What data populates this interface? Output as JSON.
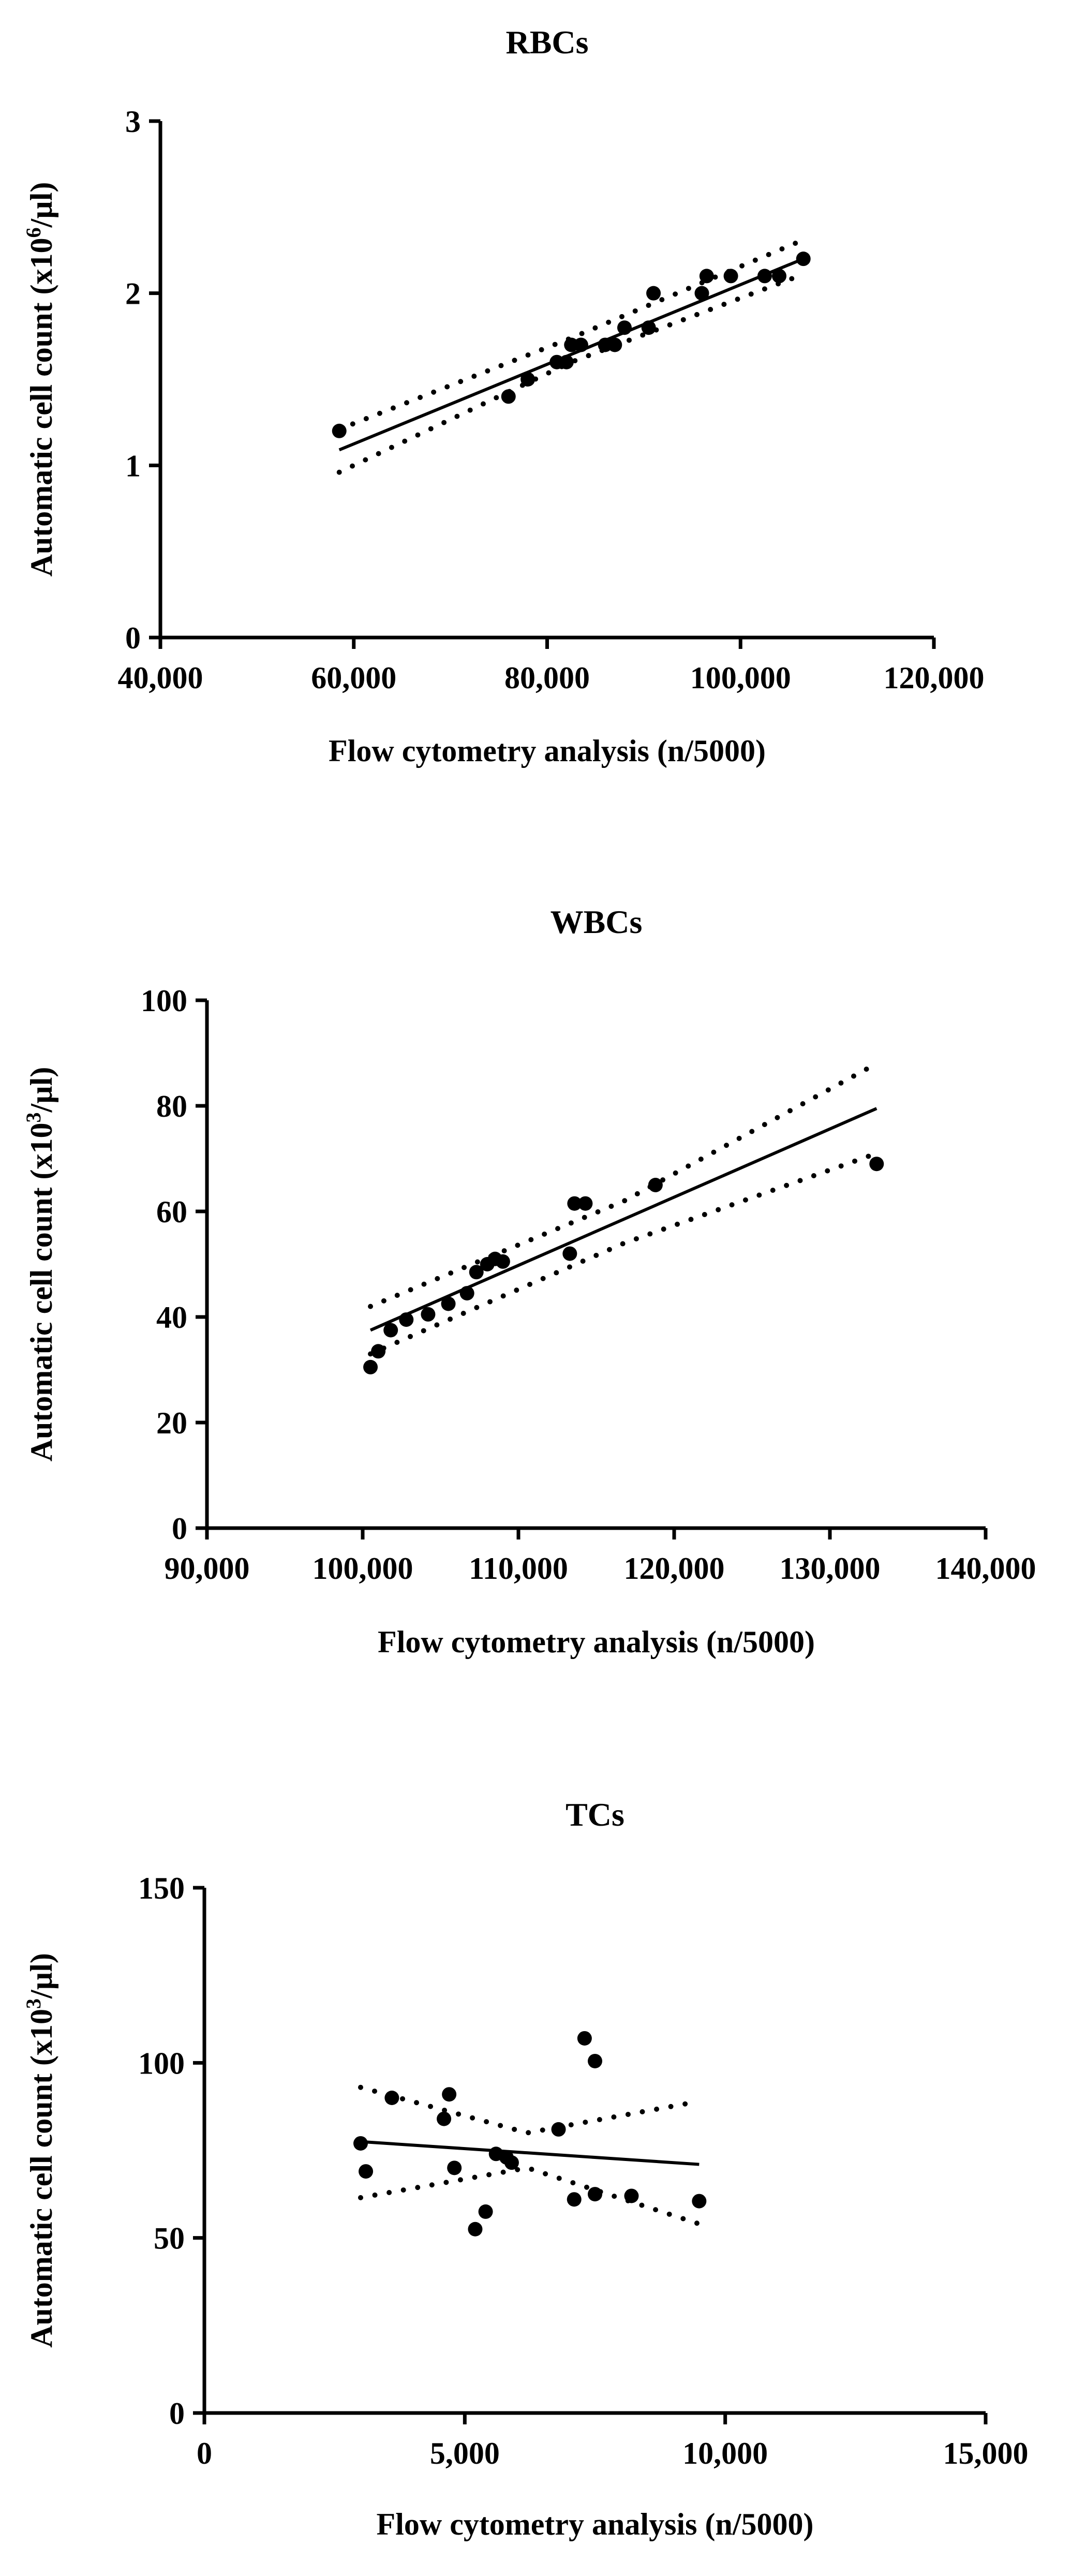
{
  "chart_data": [
    {
      "type": "scatter",
      "title": "RBCs",
      "xlabel": "Flow cytometry analysis (n/5000)",
      "ylabel_main": "Automatic cell count (x10",
      "ylabel_sup": "6",
      "ylabel_tail": "/µl)",
      "xlim": [
        40000,
        120000
      ],
      "ylim": [
        0,
        3
      ],
      "xticks": [
        40000,
        60000,
        80000,
        100000,
        120000
      ],
      "xtick_labels": [
        "40,000",
        "60,000",
        "80,000",
        "100,000",
        "120,000"
      ],
      "yticks": [
        0,
        1,
        2,
        3
      ],
      "ytick_labels": [
        "0",
        "1",
        "2",
        "3"
      ],
      "points": [
        [
          58500,
          1.2
        ],
        [
          76000,
          1.4
        ],
        [
          78000,
          1.5
        ],
        [
          81000,
          1.6
        ],
        [
          82000,
          1.6
        ],
        [
          82500,
          1.7
        ],
        [
          83500,
          1.7
        ],
        [
          86000,
          1.7
        ],
        [
          87000,
          1.7
        ],
        [
          88000,
          1.8
        ],
        [
          90500,
          1.8
        ],
        [
          91000,
          2.0
        ],
        [
          96000,
          2.0
        ],
        [
          96500,
          2.1
        ],
        [
          99000,
          2.1
        ],
        [
          102500,
          2.1
        ],
        [
          104000,
          2.1
        ],
        [
          106500,
          2.2
        ]
      ],
      "fit": [
        [
          58500,
          1.09
        ],
        [
          106500,
          2.2
        ]
      ],
      "ci_upper": [
        [
          58500,
          1.21
        ],
        [
          82500,
          1.74
        ],
        [
          106500,
          2.31
        ]
      ],
      "ci_lower": [
        [
          58500,
          0.96
        ],
        [
          82500,
          1.6
        ],
        [
          106500,
          2.11
        ]
      ]
    },
    {
      "type": "scatter",
      "title": "WBCs",
      "xlabel": "Flow cytometry analysis (n/5000)",
      "ylabel_main": "Automatic cell count (x10",
      "ylabel_sup": "3",
      "ylabel_tail": "/µl)",
      "xlim": [
        90000,
        140000
      ],
      "ylim": [
        0,
        100
      ],
      "xticks": [
        90000,
        100000,
        110000,
        120000,
        130000,
        140000
      ],
      "xtick_labels": [
        "90,000",
        "100,000",
        "110,000",
        "120,000",
        "130,000",
        "140,000"
      ],
      "yticks": [
        0,
        20,
        40,
        60,
        80,
        100
      ],
      "ytick_labels": [
        "0",
        "20",
        "40",
        "60",
        "80",
        "100"
      ],
      "points": [
        [
          100500,
          30.5
        ],
        [
          101000,
          33.5
        ],
        [
          101800,
          37.5
        ],
        [
          102800,
          39.5
        ],
        [
          104200,
          40.5
        ],
        [
          105500,
          42.5
        ],
        [
          106700,
          44.5
        ],
        [
          107300,
          48.5
        ],
        [
          108000,
          50
        ],
        [
          108500,
          51
        ],
        [
          109000,
          50.5
        ],
        [
          113300,
          52
        ],
        [
          113600,
          61.5
        ],
        [
          114300,
          61.5
        ],
        [
          118800,
          65
        ],
        [
          133000,
          69
        ]
      ],
      "fit": [
        [
          100500,
          37.5
        ],
        [
          133000,
          79.5
        ]
      ],
      "ci_upper": [
        [
          100500,
          42
        ],
        [
          116800,
          62
        ],
        [
          133000,
          88
        ]
      ],
      "ci_lower": [
        [
          100500,
          33
        ],
        [
          116800,
          54
        ],
        [
          133000,
          71
        ]
      ]
    },
    {
      "type": "scatter",
      "title": "TCs",
      "xlabel": "Flow cytometry analysis (n/5000)",
      "ylabel_main": "Automatic cell count (x10",
      "ylabel_sup": "3",
      "ylabel_tail": "/µl)",
      "xlim": [
        0,
        15000
      ],
      "ylim": [
        0,
        150
      ],
      "xticks": [
        0,
        5000,
        10000,
        15000
      ],
      "xtick_labels": [
        "0",
        "5,000",
        "10,000",
        "15,000"
      ],
      "yticks": [
        0,
        50,
        100,
        150
      ],
      "ytick_labels": [
        "0",
        "50",
        "100",
        "150"
      ],
      "points": [
        [
          3000,
          77
        ],
        [
          3100,
          69
        ],
        [
          3600,
          90
        ],
        [
          4600,
          84
        ],
        [
          4700,
          91
        ],
        [
          4800,
          70
        ],
        [
          5200,
          52.5
        ],
        [
          5400,
          57.5
        ],
        [
          5600,
          74
        ],
        [
          5800,
          73
        ],
        [
          5900,
          71.5
        ],
        [
          6800,
          81
        ],
        [
          7100,
          61
        ],
        [
          7300,
          107
        ],
        [
          7500,
          62.5
        ],
        [
          7500,
          100.5
        ],
        [
          8200,
          62
        ],
        [
          9500,
          60.5
        ]
      ],
      "fit": [
        [
          3000,
          77.5
        ],
        [
          9500,
          71
        ]
      ],
      "ci_upper": [
        [
          3000,
          93
        ],
        [
          6200,
          80
        ],
        [
          9500,
          89
        ]
      ],
      "ci_lower": [
        [
          3000,
          61.5
        ],
        [
          6200,
          70
        ],
        [
          9500,
          54
        ]
      ]
    }
  ]
}
